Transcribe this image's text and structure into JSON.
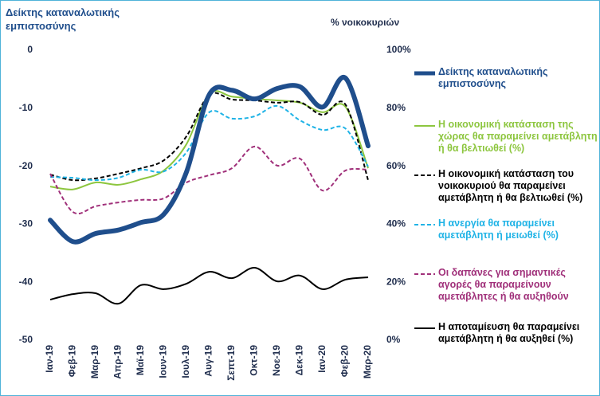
{
  "chart_data": {
    "type": "line",
    "y_label": "Δείκτης καταναλωτικής εμπιστοσύνης",
    "y2_label": "% νοικοκυριών",
    "categories": [
      "Ιαν-19",
      "Φεβ-19",
      "Μαρ-19",
      "Απρ-19",
      "Μαϊ-19",
      "Ιουν-19",
      "Ιουλ-19",
      "Αυγ-19",
      "Σεπτ-19",
      "Οκτ-19",
      "Νοε-19",
      "Δεκ-19",
      "Ιαν-20",
      "Φεβ-20",
      "Μαρ-20"
    ],
    "ylim": [
      -50,
      0
    ],
    "yticks": [
      0,
      -10,
      -20,
      -30,
      -40,
      -50
    ],
    "y2lim": [
      0,
      100
    ],
    "y2ticks": [
      {
        "value": 100,
        "label": "100%"
      },
      {
        "value": 80,
        "label": "80%"
      },
      {
        "value": 60,
        "label": "60%"
      },
      {
        "value": 40,
        "label": "40%"
      },
      {
        "value": 20,
        "label": "20%"
      },
      {
        "value": 0,
        "label": "0%"
      }
    ],
    "legend": "right",
    "series": [
      {
        "name": "Δείκτης καταναλωτικής εμπιστοσύνης",
        "color": "#1f4e8c",
        "dashed": false,
        "axis": "y",
        "values": [
          -29.3,
          -33,
          -31.6,
          -31,
          -29.7,
          -28.3,
          -21,
          -7.7,
          -6.9,
          -8.4,
          -6.6,
          -6.3,
          -9.8,
          -4.8,
          -16.5
        ]
      },
      {
        "name": "Η οικονομική κατάσταση της χώρας θα παραμείνει αμετάβλητη ή θα βελτιωθεί (%)",
        "color": "#8dc63f",
        "dashed": false,
        "axis": "y2",
        "values": [
          53,
          52,
          54.4,
          53.6,
          55.5,
          58.5,
          67.6,
          84.9,
          84,
          83.2,
          82.7,
          81.9,
          78.6,
          80.5,
          59.3
        ]
      },
      {
        "name": "Η οικονομική κατάσταση του νοικοκυριού θα παραμείνει αμετάβλητη ή θα βελτιωθεί (%)",
        "color": "#000000",
        "dashed": true,
        "axis": "y2",
        "values": [
          57.1,
          55.2,
          55.8,
          57.4,
          59.3,
          62,
          70.3,
          84.6,
          83,
          82.7,
          81.9,
          82.1,
          77.7,
          81.3,
          55.2
        ]
      },
      {
        "name": "Η ανεργία θα παραμείνει αμετάβλητη ή μειωθεί (%)",
        "color": "#1fb3e6",
        "dashed": true,
        "axis": "y2",
        "values": [
          56.3,
          56,
          55.2,
          56,
          58.8,
          58.2,
          64.8,
          78.6,
          76.4,
          77.2,
          80.8,
          75.8,
          72.5,
          73,
          59.9
        ]
      },
      {
        "name": "Οι δαπάνες για σημαντικές αγορές θα παραμείνουν αμετάβλητες ή θα αυξηθούν",
        "color": "#a0307a",
        "dashed": true,
        "axis": "y2",
        "values": [
          57.4,
          44.2,
          46.2,
          47.5,
          48.4,
          48.9,
          54.4,
          56.9,
          59.3,
          66.8,
          60.2,
          62.6,
          51.6,
          58.5,
          58.8
        ]
      },
      {
        "name": "Η αποταμίευση θα παραμείνει αμετάβλητη ή θα αυξηθεί (%)",
        "color": "#000000",
        "dashed": false,
        "axis": "y2",
        "values": [
          14,
          15.9,
          16.2,
          12.6,
          19,
          17.6,
          19.5,
          23.6,
          21.4,
          25,
          20.3,
          22.3,
          17.6,
          20.9,
          21.7
        ]
      }
    ]
  }
}
